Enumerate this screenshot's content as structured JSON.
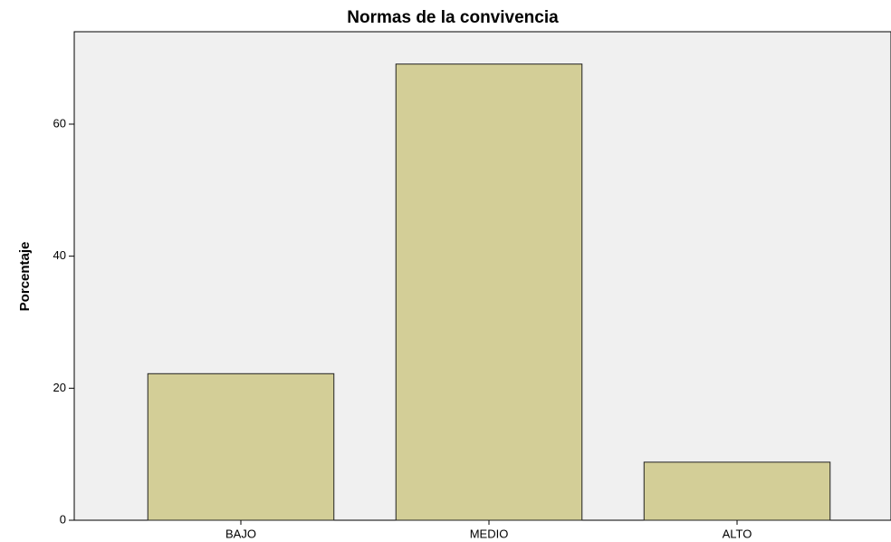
{
  "chart_data": {
    "type": "bar",
    "title": "Normas de la convivencia",
    "y_label": "Porcentaje",
    "categories": [
      "BAJO",
      "MEDIO",
      "ALTO"
    ],
    "values": [
      22.2,
      69.1,
      8.8
    ],
    "color": "#d3ce97",
    "ylim": [
      0,
      74
    ],
    "yticks": [
      0,
      20,
      40,
      60
    ],
    "grid": false
  }
}
